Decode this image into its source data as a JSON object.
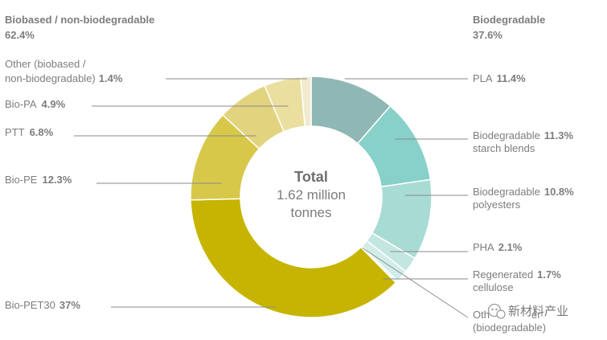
{
  "headers": {
    "left_title": "Biobased / non-biodegradable",
    "left_pct": "62.4%",
    "right_title": "Biodegradable",
    "right_pct": "37.6%"
  },
  "center": {
    "title": "Total",
    "line1": "1.62 million",
    "line2": "tonnes"
  },
  "watermark": {
    "text": "新材料产业",
    "icon": "wechat-icon"
  },
  "chart_data": {
    "type": "pie",
    "variant": "donut",
    "title": "",
    "groups": [
      {
        "name": "Biobased / non-biodegradable",
        "value": 62.4
      },
      {
        "name": "Biodegradable",
        "value": 37.6
      }
    ],
    "slices": [
      {
        "name": "PLA",
        "value": 11.4,
        "display": "11.4%",
        "group": "Biodegradable",
        "color": "#8fb7b5"
      },
      {
        "name": "Biodegradable starch blends",
        "value": 11.3,
        "display": "11.3%",
        "group": "Biodegradable",
        "color": "#88d0ca"
      },
      {
        "name": "Biodegradable polyesters",
        "value": 10.8,
        "display": "10.8%",
        "group": "Biodegradable",
        "color": "#a9dbd5"
      },
      {
        "name": "PHA",
        "value": 2.1,
        "display": "2.1%",
        "group": "Biodegradable",
        "color": "#c3e6e1"
      },
      {
        "name": "Regenerated cellulose",
        "value": 1.7,
        "display": "1.7%",
        "group": "Biodegradable",
        "color": "#d2ede9"
      },
      {
        "name": "Other (biodegradable)",
        "value": 0.3,
        "display": "",
        "group": "Biodegradable",
        "color": "#e8f5f3"
      },
      {
        "name": "Bio-PET30",
        "value": 37.0,
        "display": "37%",
        "group": "Biobased / non-biodegradable",
        "color": "#c6b400"
      },
      {
        "name": "Bio-PE",
        "value": 12.3,
        "display": "12.3%",
        "group": "Biobased / non-biodegradable",
        "color": "#d7c84a"
      },
      {
        "name": "PTT",
        "value": 6.8,
        "display": "6.8%",
        "group": "Biobased / non-biodegradable",
        "color": "#e2d37f"
      },
      {
        "name": "Bio-PA",
        "value": 4.9,
        "display": "4.9%",
        "group": "Biobased / non-biodegradable",
        "color": "#ebdf9f"
      },
      {
        "name": "Other (biobased / non-biodegradable)",
        "value": 1.4,
        "display": "1.4%",
        "group": "Biobased / non-biodegradable",
        "color": "#f2ead0"
      }
    ],
    "labels": {
      "pla": {
        "name": "PLA",
        "value": "11.4%"
      },
      "starch": {
        "name1": "Biodegradable",
        "value": "11.3%",
        "name2": "starch blends"
      },
      "polyesters": {
        "name1": "Biodegradable",
        "value": "10.8%",
        "name2": "polyesters"
      },
      "pha": {
        "name": "PHA",
        "value": "2.1%"
      },
      "cellulose": {
        "name1": "Regenerated",
        "value": "1.7%",
        "name2": "cellulose"
      },
      "other_bio": {
        "name1": "Oth",
        "name1_tail": "er",
        "name2": "(biodegradable)"
      },
      "other_biobased": {
        "name1": "Other (biobased /",
        "name2": "non-biodegradable)",
        "value": "1.4%"
      },
      "biopa": {
        "name": "Bio-PA",
        "value": "4.9%"
      },
      "ptt": {
        "name": "PTT",
        "value": "6.8%"
      },
      "biope": {
        "name": "Bio-PE",
        "value": "12.3%"
      },
      "biopet": {
        "name": "Bio-PET30",
        "value": "37%"
      }
    },
    "legend": "none"
  }
}
